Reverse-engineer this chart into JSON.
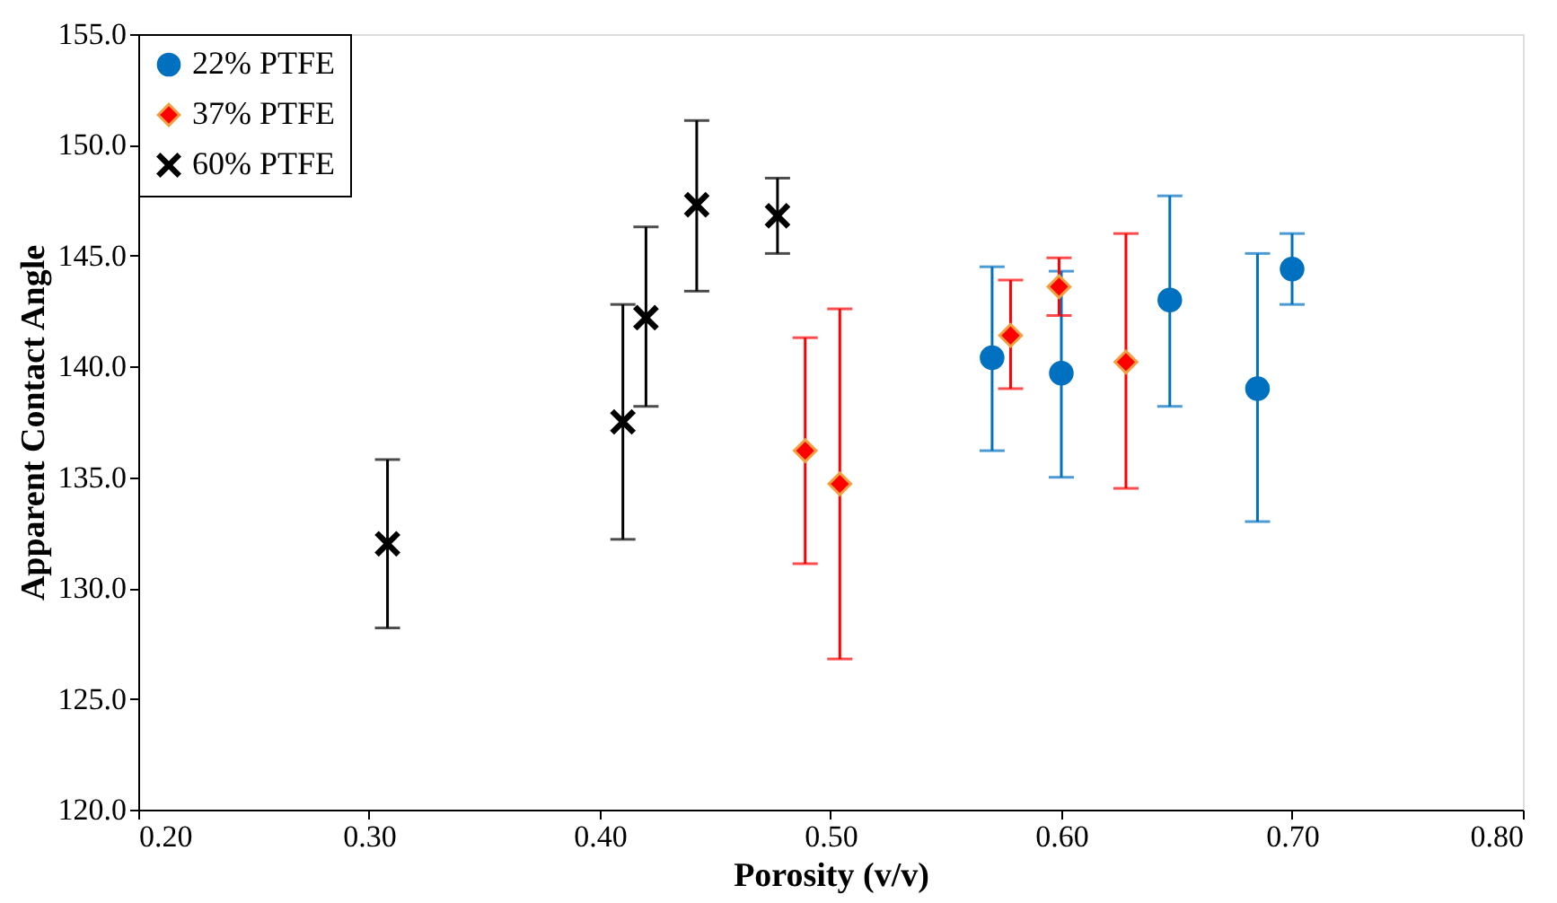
{
  "chart_data": {
    "type": "scatter",
    "xlabel": "Porosity (v/v)",
    "ylabel": "Apparent Contact Angle",
    "xlim": [
      0.2,
      0.8
    ],
    "xticks": [
      {
        "value": 0.2,
        "label": "0.20"
      },
      {
        "value": 0.3,
        "label": "0.30"
      },
      {
        "value": 0.4,
        "label": "0.40"
      },
      {
        "value": 0.5,
        "label": "0.50"
      },
      {
        "value": 0.6,
        "label": "0.60"
      },
      {
        "value": 0.7,
        "label": "0.70"
      },
      {
        "value": 0.8,
        "label": "0.80"
      }
    ],
    "ylim": [
      120,
      155
    ],
    "yticks": [
      {
        "value": 120,
        "label": "120.0"
      },
      {
        "value": 125,
        "label": "125.0"
      },
      {
        "value": 130,
        "label": "130.0"
      },
      {
        "value": 135,
        "label": "135.0"
      },
      {
        "value": 140,
        "label": "140.0"
      },
      {
        "value": 145,
        "label": "145.0"
      },
      {
        "value": 150,
        "label": "150.0"
      },
      {
        "value": 155,
        "label": "155.0"
      }
    ],
    "grid": false,
    "legend": "top left",
    "series": [
      {
        "name": "22% PTFE",
        "color": "#0070c0",
        "marker": "circle",
        "x": [
          0.57,
          0.6,
          0.647,
          0.685,
          0.7
        ],
        "values": [
          140.4,
          139.7,
          143.0,
          139.0,
          144.4
        ],
        "errors": [
          [
            136.2,
            144.5
          ],
          [
            135.0,
            144.3
          ],
          [
            138.2,
            147.7
          ],
          [
            133.0,
            145.1
          ],
          [
            142.8,
            146.0
          ]
        ]
      },
      {
        "name": "37% PTFE",
        "color": "#ff0000",
        "marker": "diamond",
        "x": [
          0.489,
          0.504,
          0.578,
          0.599,
          0.628
        ],
        "values": [
          136.2,
          134.7,
          141.4,
          143.6,
          140.2
        ],
        "errors": [
          [
            131.1,
            141.3
          ],
          [
            126.8,
            142.6
          ],
          [
            139.0,
            143.9
          ],
          [
            142.3,
            144.9
          ],
          [
            134.5,
            146.0
          ]
        ]
      },
      {
        "name": "60% PTFE",
        "color": "#000000",
        "marker": "cross",
        "x": [
          0.308,
          0.41,
          0.42,
          0.442,
          0.477
        ],
        "values": [
          132.0,
          137.5,
          142.2,
          147.3,
          146.8
        ],
        "errors": [
          [
            128.2,
            135.8
          ],
          [
            132.2,
            142.8
          ],
          [
            138.2,
            146.3
          ],
          [
            143.4,
            151.1
          ],
          [
            145.1,
            148.5
          ]
        ]
      }
    ]
  }
}
